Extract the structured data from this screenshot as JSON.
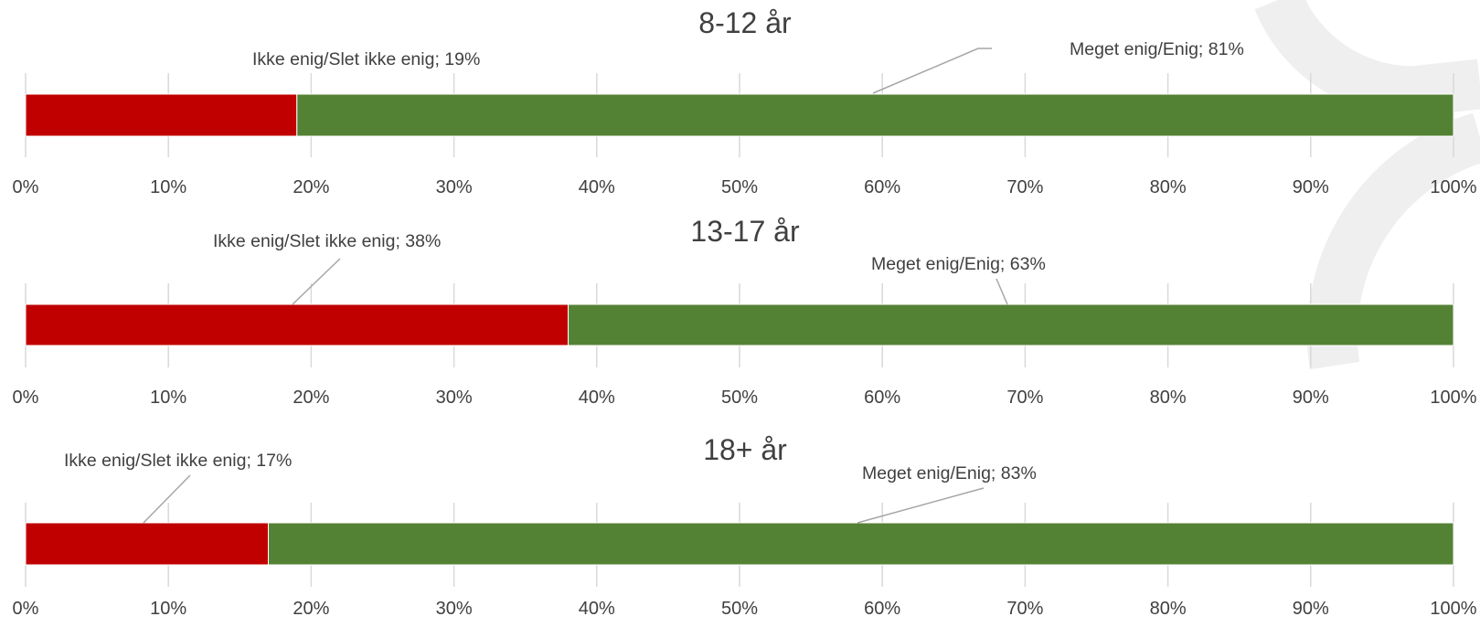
{
  "colors": {
    "disagree": "#C00000",
    "agree": "#548235",
    "grid": "#D9D9D9",
    "text": "#404040",
    "leader": "#A6A6A6",
    "decoration": "#EFEFEF"
  },
  "chart_data": [
    {
      "type": "bar",
      "stacked": true,
      "orientation": "horizontal",
      "normalized": true,
      "title": "8-12 år",
      "xlim": [
        0,
        100
      ],
      "grid": true,
      "x_ticks": [
        "0%",
        "10%",
        "20%",
        "30%",
        "40%",
        "50%",
        "60%",
        "70%",
        "80%",
        "90%",
        "100%"
      ],
      "series": [
        {
          "name": "Ikke enig/Slet ikke enig",
          "value": 19,
          "label": "Ikke enig/Slet ikke enig; 19%"
        },
        {
          "name": "Meget enig/Enig",
          "value": 81,
          "label": "Meget enig/Enig; 81%"
        }
      ]
    },
    {
      "type": "bar",
      "stacked": true,
      "orientation": "horizontal",
      "normalized": true,
      "title": "13-17 år",
      "xlim": [
        0,
        100
      ],
      "grid": true,
      "x_ticks": [
        "0%",
        "10%",
        "20%",
        "30%",
        "40%",
        "50%",
        "60%",
        "70%",
        "80%",
        "90%",
        "100%"
      ],
      "series": [
        {
          "name": "Ikke enig/Slet ikke enig",
          "value": 38,
          "label": "Ikke enig/Slet ikke enig; 38%"
        },
        {
          "name": "Meget enig/Enig",
          "value": 63,
          "label": "Meget enig/Enig; 63%"
        }
      ]
    },
    {
      "type": "bar",
      "stacked": true,
      "orientation": "horizontal",
      "normalized": true,
      "title": "18+ år",
      "xlim": [
        0,
        100
      ],
      "grid": true,
      "x_ticks": [
        "0%",
        "10%",
        "20%",
        "30%",
        "40%",
        "50%",
        "60%",
        "70%",
        "80%",
        "90%",
        "100%"
      ],
      "series": [
        {
          "name": "Ikke enig/Slet ikke enig",
          "value": 17,
          "label": "Ikke enig/Slet ikke enig; 17%"
        },
        {
          "name": "Meget enig/Enig",
          "value": 83,
          "label": "Meget enig/Enig; 83%"
        }
      ]
    }
  ]
}
